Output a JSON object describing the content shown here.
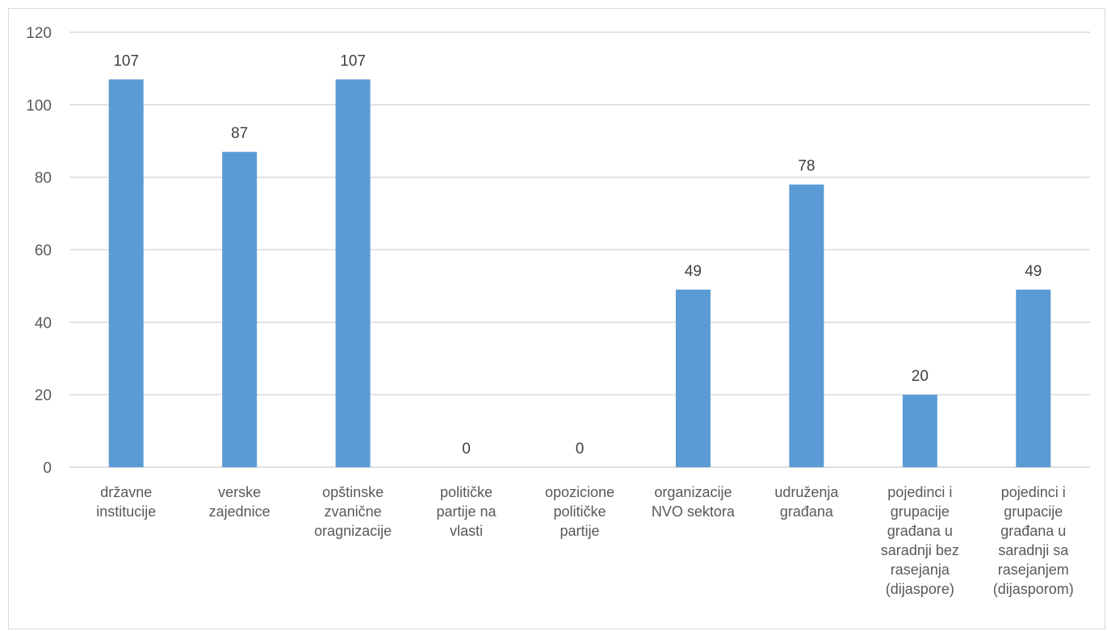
{
  "chart_data": {
    "type": "bar",
    "categories": [
      [
        "državne",
        "institucije"
      ],
      [
        "verske",
        "zajednice"
      ],
      [
        "opštinske",
        "zvanične",
        "oragnizacije"
      ],
      [
        "političke",
        "partije na",
        "vlasti"
      ],
      [
        "opozicione",
        "političke",
        "partije"
      ],
      [
        "organizacije",
        "NVO sektora"
      ],
      [
        "udruženja",
        "građana"
      ],
      [
        "pojedinci i",
        "grupacije",
        "građana u",
        "saradnji bez",
        "rasejanja",
        "(dijaspore)"
      ],
      [
        "pojedinci i",
        "grupacije",
        "građana u",
        "saradnji sa",
        "rasejanjem",
        "(dijasporom)"
      ]
    ],
    "values": [
      107,
      87,
      107,
      0,
      0,
      49,
      78,
      20,
      49
    ],
    "ylim": [
      0,
      120
    ],
    "yticks": [
      0,
      20,
      40,
      60,
      80,
      100,
      120
    ],
    "bar_color": "#5b9bd5",
    "grid_color": "#d9d9d9",
    "grid": true,
    "data_labels": true,
    "title": "",
    "xlabel": "",
    "ylabel": ""
  }
}
